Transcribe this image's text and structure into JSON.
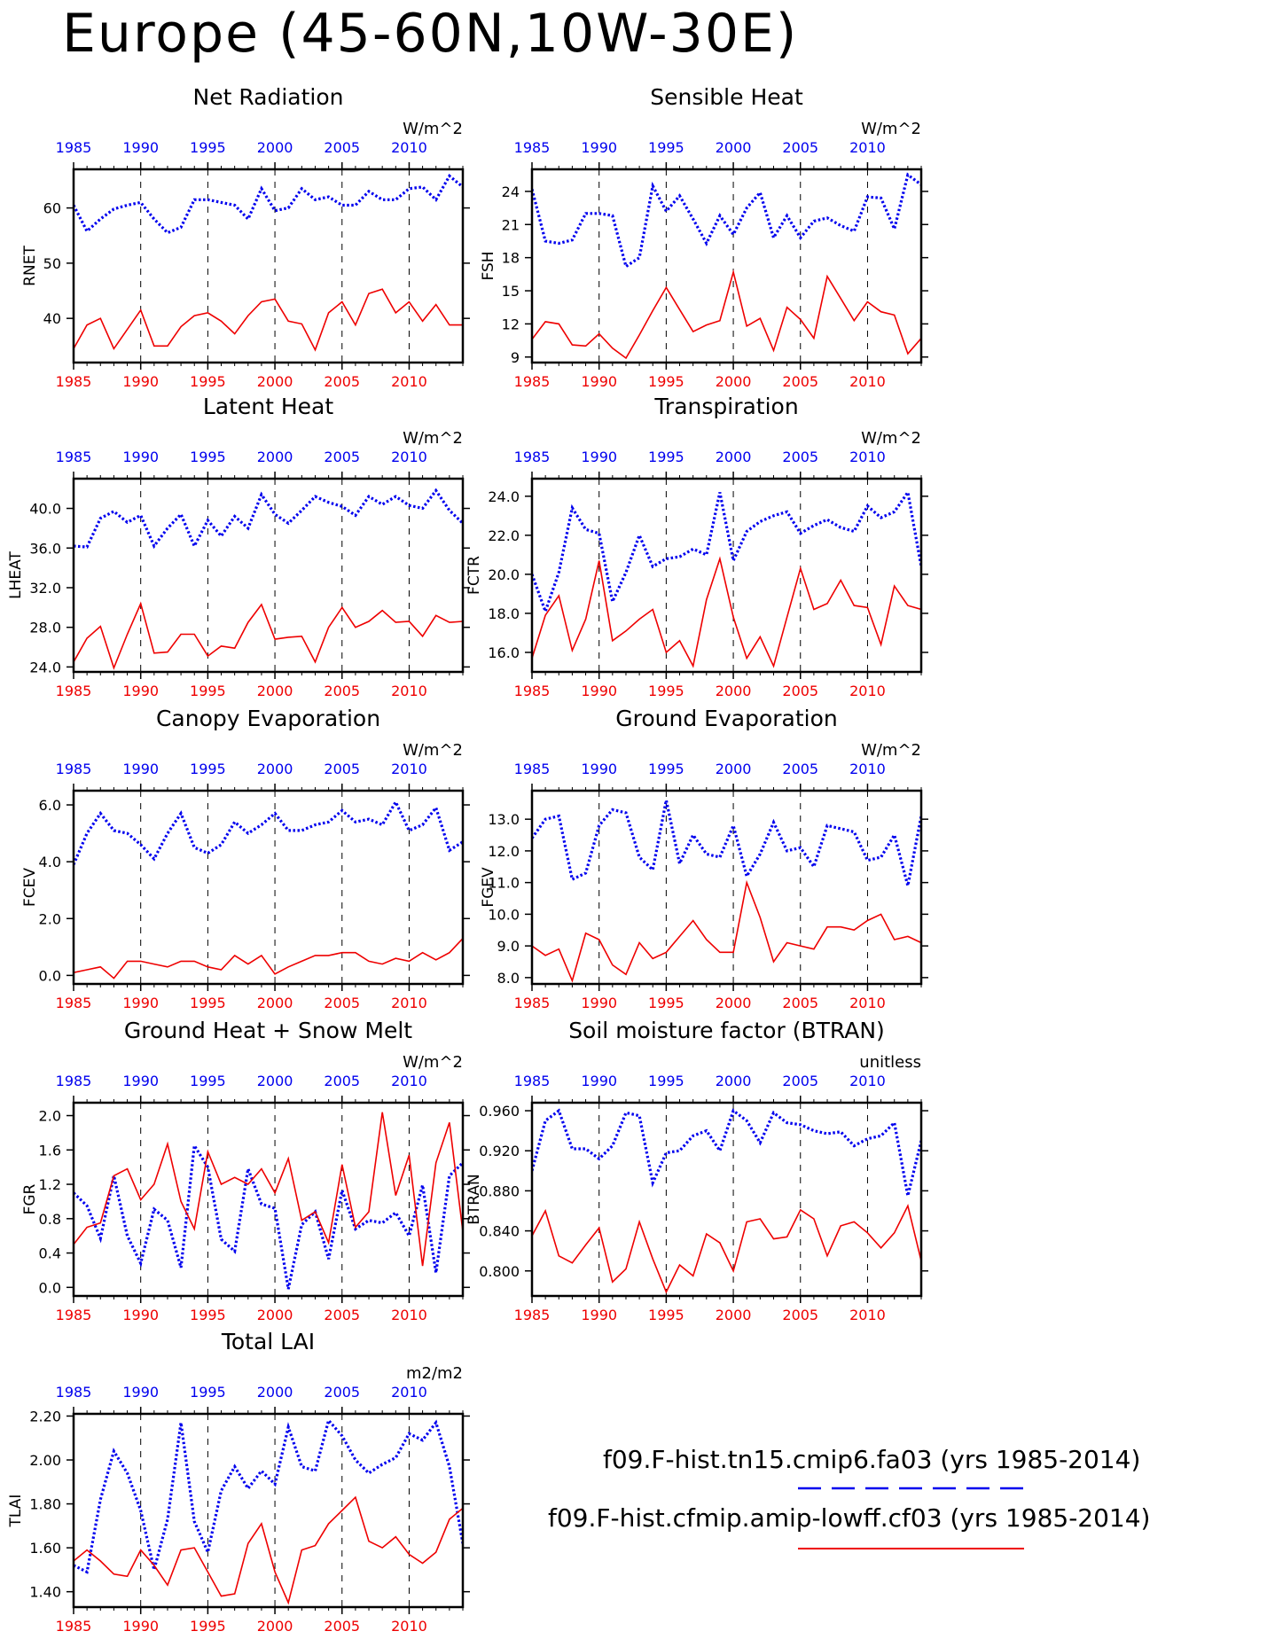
{
  "title": "Europe (45-60N,10W-30E)",
  "colors": {
    "case1": "#0000ee",
    "case2": "#ee0000",
    "axis": "#000000"
  },
  "legend": {
    "case1_label": "f09.F-hist.tn15.cmip6.fa03 (yrs 1985-2014)",
    "case2_label": "f09.F-hist.cfmip.amip-lowff.cf03 (yrs 1985-2014)"
  },
  "chart_data": [
    {
      "type": "line",
      "title": "Net Radiation",
      "ylabel": "RNET",
      "units": "W/m^2",
      "xlim": [
        1985,
        2014
      ],
      "ylim": [
        32,
        67
      ],
      "yticks": [
        40,
        50,
        60
      ],
      "ytick_labels": [
        "40",
        "50",
        "60"
      ],
      "xticks": [
        1985,
        1990,
        1995,
        2000,
        2005,
        2010
      ],
      "x": [
        1985,
        1986,
        1987,
        1988,
        1989,
        1990,
        1991,
        1992,
        1993,
        1994,
        1995,
        1996,
        1997,
        1998,
        1999,
        2000,
        2001,
        2002,
        2003,
        2004,
        2005,
        2006,
        2007,
        2008,
        2009,
        2010,
        2011,
        2012,
        2013,
        2014
      ],
      "series": [
        {
          "values": [
            60.5,
            55.8,
            58,
            59.8,
            60.5,
            61,
            58,
            55.5,
            56.5,
            61.5,
            61.5,
            61,
            60.5,
            58,
            63.5,
            59.5,
            60,
            63.5,
            61.5,
            62,
            60.5,
            60.5,
            63,
            61.5,
            61.5,
            63.5,
            63.8,
            61.5,
            65.8,
            63.8
          ]
        },
        {
          "values": [
            34.5,
            38.8,
            40,
            34.5,
            38,
            41.5,
            35,
            35,
            38.5,
            40.5,
            41,
            39.5,
            37.2,
            40.5,
            43,
            43.5,
            39.5,
            39,
            34.3,
            41,
            43,
            38.8,
            44.5,
            45.3,
            41,
            43,
            39.5,
            42.5,
            38.8,
            38.8
          ]
        }
      ]
    },
    {
      "type": "line",
      "title": "Sensible Heat",
      "ylabel": "FSH",
      "units": "W/m^2",
      "xlim": [
        1985,
        2014
      ],
      "ylim": [
        8.5,
        26
      ],
      "yticks": [
        9,
        12,
        15,
        18,
        21,
        24
      ],
      "ytick_labels": [
        "9",
        "12",
        "15",
        "18",
        "21",
        "24"
      ],
      "xticks": [
        1985,
        1990,
        1995,
        2000,
        2005,
        2010
      ],
      "x": [
        1985,
        1986,
        1987,
        1988,
        1989,
        1990,
        1991,
        1992,
        1993,
        1994,
        1995,
        1996,
        1997,
        1998,
        1999,
        2000,
        2001,
        2002,
        2003,
        2004,
        2005,
        2006,
        2007,
        2008,
        2009,
        2010,
        2011,
        2012,
        2013,
        2014
      ],
      "series": [
        {
          "values": [
            24.2,
            19.5,
            19.3,
            19.6,
            22,
            22,
            21.8,
            17.2,
            18,
            24.5,
            22.2,
            23.6,
            21.5,
            19.3,
            21.8,
            20.1,
            22.5,
            23.9,
            19.8,
            21.8,
            19.8,
            21.3,
            21.6,
            20.9,
            20.4,
            23.5,
            23.4,
            20.6,
            25.5,
            24.6
          ]
        },
        {
          "values": [
            10.6,
            12.2,
            12,
            10.1,
            10,
            11.1,
            9.8,
            8.9,
            11,
            13.2,
            15.3,
            13.3,
            11.3,
            11.9,
            12.3,
            16.7,
            11.8,
            12.5,
            9.6,
            13.5,
            12.4,
            10.7,
            16.3,
            14.3,
            12.3,
            14,
            13.1,
            12.8,
            9.3,
            10.7
          ]
        }
      ]
    },
    {
      "type": "line",
      "title": "Latent Heat",
      "ylabel": "LHEAT",
      "units": "W/m^2",
      "xlim": [
        1985,
        2014
      ],
      "ylim": [
        23.5,
        43
      ],
      "yticks": [
        24,
        28,
        32,
        36,
        40
      ],
      "ytick_labels": [
        "24.0",
        "28.0",
        "32.0",
        "36.0",
        "40.0"
      ],
      "xticks": [
        1985,
        1990,
        1995,
        2000,
        2005,
        2010
      ],
      "x": [
        1985,
        1986,
        1987,
        1988,
        1989,
        1990,
        1991,
        1992,
        1993,
        1994,
        1995,
        1996,
        1997,
        1998,
        1999,
        2000,
        2001,
        2002,
        2003,
        2004,
        2005,
        2006,
        2007,
        2008,
        2009,
        2010,
        2011,
        2012,
        2013,
        2014
      ],
      "series": [
        {
          "values": [
            36.2,
            36.1,
            39,
            39.7,
            38.6,
            39.3,
            36.2,
            38,
            39.4,
            36.2,
            38.8,
            37.2,
            39.2,
            38,
            41.4,
            39.4,
            38.5,
            39.8,
            41.2,
            40.6,
            40.2,
            39.3,
            41.2,
            40.4,
            41.2,
            40.3,
            40,
            41.8,
            39.8,
            38.5
          ]
        },
        {
          "values": [
            24.5,
            26.9,
            28.1,
            23.9,
            27.3,
            30.4,
            25.4,
            25.5,
            27.3,
            27.3,
            25.1,
            26.1,
            25.9,
            28.5,
            30.3,
            26.8,
            27,
            27.1,
            24.5,
            28,
            30,
            28,
            28.6,
            29.7,
            28.5,
            28.6,
            27.1,
            29.2,
            28.5,
            28.6
          ]
        }
      ]
    },
    {
      "type": "line",
      "title": "Transpiration",
      "ylabel": "FCTR",
      "units": "W/m^2",
      "xlim": [
        1985,
        2014
      ],
      "ylim": [
        15,
        24.9
      ],
      "yticks": [
        16,
        18,
        20,
        22,
        24
      ],
      "ytick_labels": [
        "16.0",
        "18.0",
        "20.0",
        "22.0",
        "24.0"
      ],
      "xticks": [
        1985,
        1990,
        1995,
        2000,
        2005,
        2010
      ],
      "x": [
        1985,
        1986,
        1987,
        1988,
        1989,
        1990,
        1991,
        1992,
        1993,
        1994,
        1995,
        1996,
        1997,
        1998,
        1999,
        2000,
        2001,
        2002,
        2003,
        2004,
        2005,
        2006,
        2007,
        2008,
        2009,
        2010,
        2011,
        2012,
        2013,
        2014
      ],
      "series": [
        {
          "values": [
            20,
            18.1,
            20.1,
            23.4,
            22.3,
            22.1,
            18.6,
            20.1,
            22,
            20.4,
            20.8,
            20.9,
            21.3,
            21,
            24.2,
            20.7,
            22.2,
            22.7,
            23,
            23.2,
            22.1,
            22.5,
            22.8,
            22.4,
            22.2,
            23.5,
            22.9,
            23.2,
            24.2,
            20.4
          ]
        },
        {
          "values": [
            15.7,
            17.9,
            18.9,
            16.1,
            17.7,
            20.7,
            16.6,
            17.1,
            17.7,
            18.2,
            16,
            16.6,
            15.3,
            18.7,
            20.8,
            17.8,
            15.7,
            16.8,
            15.3,
            17.8,
            20.3,
            18.2,
            18.5,
            19.7,
            18.4,
            18.3,
            16.4,
            19.4,
            18.4,
            18.2
          ]
        }
      ]
    },
    {
      "type": "line",
      "title": "Canopy Evaporation",
      "ylabel": "FCEV",
      "units": "W/m^2",
      "xlim": [
        1985,
        2014
      ],
      "ylim": [
        -0.3,
        6.5
      ],
      "yticks": [
        0,
        2,
        4,
        6
      ],
      "ytick_labels": [
        "0.0",
        "2.0",
        "4.0",
        "6.0"
      ],
      "xticks": [
        1985,
        1990,
        1995,
        2000,
        2005,
        2010
      ],
      "x": [
        1985,
        1986,
        1987,
        1988,
        1989,
        1990,
        1991,
        1992,
        1993,
        1994,
        1995,
        1996,
        1997,
        1998,
        1999,
        2000,
        2001,
        2002,
        2003,
        2004,
        2005,
        2006,
        2007,
        2008,
        2009,
        2010,
        2011,
        2012,
        2013,
        2014
      ],
      "series": [
        {
          "values": [
            3.9,
            5,
            5.7,
            5.1,
            5,
            4.6,
            4.1,
            5,
            5.7,
            4.5,
            4.3,
            4.6,
            5.4,
            5,
            5.3,
            5.7,
            5.1,
            5.1,
            5.3,
            5.4,
            5.8,
            5.4,
            5.5,
            5.3,
            6.1,
            5.1,
            5.3,
            5.9,
            4.4,
            4.7
          ]
        },
        {
          "values": [
            0.1,
            0.2,
            0.3,
            -0.1,
            0.5,
            0.5,
            0.4,
            0.3,
            0.5,
            0.5,
            0.3,
            0.2,
            0.7,
            0.4,
            0.7,
            0.05,
            0.3,
            0.5,
            0.7,
            0.7,
            0.8,
            0.8,
            0.5,
            0.4,
            0.6,
            0.5,
            0.8,
            0.55,
            0.8,
            1.3
          ]
        }
      ]
    },
    {
      "type": "line",
      "title": "Ground Evaporation",
      "ylabel": "FGEV",
      "units": "W/m^2",
      "xlim": [
        1985,
        2014
      ],
      "ylim": [
        7.8,
        13.9
      ],
      "yticks": [
        8,
        9,
        10,
        11,
        12,
        13
      ],
      "ytick_labels": [
        "8.0",
        "9.0",
        "10.0",
        "11.0",
        "12.0",
        "13.0"
      ],
      "xticks": [
        1985,
        1990,
        1995,
        2000,
        2005,
        2010
      ],
      "x": [
        1985,
        1986,
        1987,
        1988,
        1989,
        1990,
        1991,
        1992,
        1993,
        1994,
        1995,
        1996,
        1997,
        1998,
        1999,
        2000,
        2001,
        2002,
        2003,
        2004,
        2005,
        2006,
        2007,
        2008,
        2009,
        2010,
        2011,
        2012,
        2013,
        2014
      ],
      "series": [
        {
          "values": [
            12.4,
            13,
            13.1,
            11.1,
            11.3,
            12.8,
            13.3,
            13.2,
            11.8,
            11.4,
            13.6,
            11.6,
            12.5,
            11.9,
            11.8,
            12.8,
            11.2,
            11.9,
            12.9,
            12,
            12.1,
            11.5,
            12.8,
            12.7,
            12.6,
            11.7,
            11.8,
            12.5,
            10.9,
            13.1
          ]
        },
        {
          "values": [
            9,
            8.7,
            8.9,
            7.9,
            9.4,
            9.2,
            8.4,
            8.1,
            9.1,
            8.6,
            8.8,
            9.3,
            9.8,
            9.2,
            8.8,
            8.8,
            11,
            9.9,
            8.5,
            9.1,
            9,
            8.9,
            9.6,
            9.6,
            9.5,
            9.8,
            10,
            9.2,
            9.3,
            9.1
          ]
        }
      ]
    },
    {
      "type": "line",
      "title": "Ground Heat + Snow Melt",
      "ylabel": "FGR",
      "units": "W/m^2",
      "xlim": [
        1985,
        2014
      ],
      "ylim": [
        -0.1,
        2.15
      ],
      "yticks": [
        0,
        0.4,
        0.8,
        1.2,
        1.6,
        2.0
      ],
      "ytick_labels": [
        "0.0",
        "0.4",
        "0.8",
        "1.2",
        "1.6",
        "2.0"
      ],
      "xticks": [
        1985,
        1990,
        1995,
        2000,
        2005,
        2010
      ],
      "x": [
        1985,
        1986,
        1987,
        1988,
        1989,
        1990,
        1991,
        1992,
        1993,
        1994,
        1995,
        1996,
        1997,
        1998,
        1999,
        2000,
        2001,
        2002,
        2003,
        2004,
        2005,
        2006,
        2007,
        2008,
        2009,
        2010,
        2011,
        2012,
        2013,
        2014
      ],
      "series": [
        {
          "values": [
            1.1,
            0.95,
            0.57,
            1.3,
            0.6,
            0.28,
            0.91,
            0.78,
            0.23,
            1.65,
            1.4,
            0.56,
            0.42,
            1.38,
            0.97,
            0.92,
            -0.02,
            0.73,
            0.88,
            0.33,
            1.13,
            0.68,
            0.78,
            0.75,
            0.87,
            0.6,
            1.19,
            0.17,
            1.3,
            1.45
          ]
        },
        {
          "values": [
            0.5,
            0.7,
            0.75,
            1.3,
            1.38,
            1.02,
            1.2,
            1.67,
            1.0,
            0.68,
            1.58,
            1.2,
            1.28,
            1.2,
            1.38,
            1.1,
            1.5,
            0.78,
            0.88,
            0.52,
            1.43,
            0.7,
            0.88,
            2.04,
            1.07,
            1.54,
            0.25,
            1.45,
            1.92,
            0.65
          ]
        }
      ]
    },
    {
      "type": "line",
      "title": "Soil moisture factor (BTRAN)",
      "ylabel": "BTRAN",
      "units": "unitless",
      "xlim": [
        1985,
        2014
      ],
      "ylim": [
        0.775,
        0.968
      ],
      "yticks": [
        0.8,
        0.84,
        0.88,
        0.92,
        0.96
      ],
      "ytick_labels": [
        "0.800",
        "0.840",
        "0.880",
        "0.920",
        "0.960"
      ],
      "xticks": [
        1985,
        1990,
        1995,
        2000,
        2005,
        2010
      ],
      "x": [
        1985,
        1986,
        1987,
        1988,
        1989,
        1990,
        1991,
        1992,
        1993,
        1994,
        1995,
        1996,
        1997,
        1998,
        1999,
        2000,
        2001,
        2002,
        2003,
        2004,
        2005,
        2006,
        2007,
        2008,
        2009,
        2010,
        2011,
        2012,
        2013,
        2014
      ],
      "series": [
        {
          "values": [
            0.9,
            0.95,
            0.96,
            0.922,
            0.922,
            0.912,
            0.925,
            0.958,
            0.955,
            0.888,
            0.918,
            0.92,
            0.935,
            0.94,
            0.92,
            0.96,
            0.95,
            0.928,
            0.958,
            0.948,
            0.946,
            0.94,
            0.937,
            0.939,
            0.925,
            0.932,
            0.935,
            0.948,
            0.875,
            0.93
          ]
        },
        {
          "values": [
            0.835,
            0.86,
            0.815,
            0.808,
            0.826,
            0.843,
            0.789,
            0.802,
            0.849,
            0.812,
            0.779,
            0.806,
            0.795,
            0.837,
            0.828,
            0.8,
            0.849,
            0.852,
            0.832,
            0.834,
            0.861,
            0.852,
            0.815,
            0.845,
            0.849,
            0.838,
            0.823,
            0.838,
            0.865,
            0.81
          ]
        }
      ]
    },
    {
      "type": "line",
      "title": "Total LAI",
      "ylabel": "TLAI",
      "units": "m2/m2",
      "xlim": [
        1985,
        2014
      ],
      "ylim": [
        1.33,
        2.21
      ],
      "yticks": [
        1.4,
        1.6,
        1.8,
        2.0,
        2.2
      ],
      "ytick_labels": [
        "1.40",
        "1.60",
        "1.80",
        "2.00",
        "2.20"
      ],
      "xticks": [
        1985,
        1990,
        1995,
        2000,
        2005,
        2010
      ],
      "x": [
        1985,
        1986,
        1987,
        1988,
        1989,
        1990,
        1991,
        1992,
        1993,
        1994,
        1995,
        1996,
        1997,
        1998,
        1999,
        2000,
        2001,
        2002,
        2003,
        2004,
        2005,
        2006,
        2007,
        2008,
        2009,
        2010,
        2011,
        2012,
        2013,
        2014
      ],
      "series": [
        {
          "values": [
            1.52,
            1.49,
            1.82,
            2.04,
            1.94,
            1.77,
            1.5,
            1.73,
            2.17,
            1.72,
            1.58,
            1.86,
            1.97,
            1.87,
            1.95,
            1.89,
            2.15,
            1.97,
            1.95,
            2.18,
            2.11,
            2.0,
            1.94,
            1.98,
            2.01,
            2.12,
            2.09,
            2.17,
            1.97,
            1.62
          ]
        },
        {
          "values": [
            1.54,
            1.59,
            1.54,
            1.48,
            1.47,
            1.59,
            1.52,
            1.43,
            1.59,
            1.6,
            1.49,
            1.38,
            1.39,
            1.62,
            1.71,
            1.49,
            1.35,
            1.59,
            1.61,
            1.71,
            1.77,
            1.83,
            1.63,
            1.6,
            1.65,
            1.57,
            1.53,
            1.58,
            1.73,
            1.78
          ]
        }
      ]
    }
  ]
}
